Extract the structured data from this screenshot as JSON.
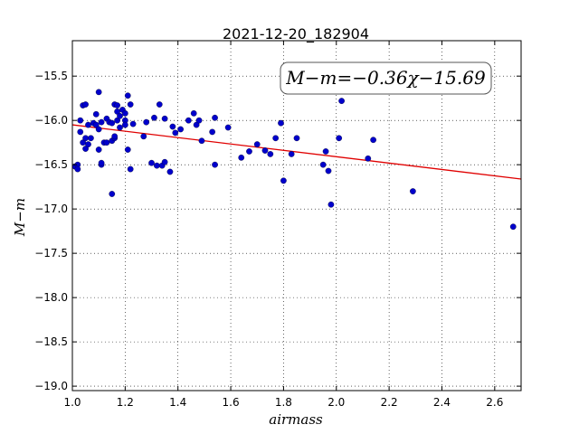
{
  "chart_data": {
    "type": "scatter",
    "title": "2021-12-20_182904",
    "xlabel": "airmass",
    "ylabel": "M−m",
    "xlim": [
      1.0,
      2.7
    ],
    "ylim": [
      -19.05,
      -15.1
    ],
    "invert_y": true,
    "grid": true,
    "grid_style": "dotted",
    "x_ticks": [
      1.0,
      1.2,
      1.4,
      1.6,
      1.8,
      2.0,
      2.2,
      2.4,
      2.6
    ],
    "x_tick_labels": [
      "1.0",
      "1.2",
      "1.4",
      "1.6",
      "1.8",
      "2.0",
      "2.2",
      "2.4",
      "2.6"
    ],
    "y_ticks": [
      -15.5,
      -16.0,
      -16.5,
      -17.0,
      -17.5,
      -18.0,
      -18.5,
      -19.0
    ],
    "y_tick_labels": [
      "−15.5",
      "−16.0",
      "−16.5",
      "−17.0",
      "−17.5",
      "−18.0",
      "−18.5",
      "−19.0"
    ],
    "annotation": "M−m=−0.36χ−15.69",
    "annotation_placement": "top-right",
    "fit_line": {
      "slope": -0.36,
      "intercept": -15.69,
      "x_range": [
        1.0,
        2.7
      ],
      "color": "#e00000"
    },
    "marker_color": "#0000cc",
    "points": [
      [
        1.01,
        -16.52
      ],
      [
        1.02,
        -16.5
      ],
      [
        1.02,
        -16.55
      ],
      [
        1.03,
        -16.13
      ],
      [
        1.03,
        -16.0
      ],
      [
        1.04,
        -15.83
      ],
      [
        1.04,
        -16.25
      ],
      [
        1.05,
        -16.2
      ],
      [
        1.05,
        -16.32
      ],
      [
        1.05,
        -15.82
      ],
      [
        1.06,
        -16.05
      ],
      [
        1.06,
        -16.27
      ],
      [
        1.07,
        -16.2
      ],
      [
        1.08,
        -16.03
      ],
      [
        1.09,
        -16.05
      ],
      [
        1.09,
        -15.93
      ],
      [
        1.1,
        -15.68
      ],
      [
        1.1,
        -16.1
      ],
      [
        1.1,
        -16.33
      ],
      [
        1.11,
        -16.5
      ],
      [
        1.11,
        -16.48
      ],
      [
        1.11,
        -16.02
      ],
      [
        1.12,
        -16.25
      ],
      [
        1.13,
        -15.98
      ],
      [
        1.13,
        -16.25
      ],
      [
        1.14,
        -16.02
      ],
      [
        1.15,
        -16.03
      ],
      [
        1.15,
        -16.23
      ],
      [
        1.15,
        -16.83
      ],
      [
        1.16,
        -16.2
      ],
      [
        1.16,
        -16.18
      ],
      [
        1.16,
        -15.82
      ],
      [
        1.17,
        -15.83
      ],
      [
        1.17,
        -16.0
      ],
      [
        1.17,
        -15.9
      ],
      [
        1.18,
        -15.95
      ],
      [
        1.18,
        -16.08
      ],
      [
        1.19,
        -15.88
      ],
      [
        1.2,
        -16.0
      ],
      [
        1.2,
        -15.92
      ],
      [
        1.2,
        -16.05
      ],
      [
        1.21,
        -15.72
      ],
      [
        1.21,
        -16.33
      ],
      [
        1.22,
        -16.55
      ],
      [
        1.22,
        -15.82
      ],
      [
        1.23,
        -16.04
      ],
      [
        1.27,
        -16.18
      ],
      [
        1.28,
        -16.02
      ],
      [
        1.3,
        -16.48
      ],
      [
        1.31,
        -15.97
      ],
      [
        1.32,
        -16.51
      ],
      [
        1.33,
        -15.82
      ],
      [
        1.34,
        -16.51
      ],
      [
        1.35,
        -16.47
      ],
      [
        1.35,
        -15.98
      ],
      [
        1.37,
        -16.58
      ],
      [
        1.38,
        -16.07
      ],
      [
        1.39,
        -16.14
      ],
      [
        1.41,
        -16.1
      ],
      [
        1.44,
        -16.0
      ],
      [
        1.46,
        -15.92
      ],
      [
        1.47,
        -16.05
      ],
      [
        1.48,
        -16.0
      ],
      [
        1.49,
        -16.23
      ],
      [
        1.53,
        -16.13
      ],
      [
        1.54,
        -16.5
      ],
      [
        1.54,
        -15.97
      ],
      [
        1.59,
        -16.08
      ],
      [
        1.64,
        -16.42
      ],
      [
        1.67,
        -16.35
      ],
      [
        1.7,
        -16.27
      ],
      [
        1.73,
        -16.34
      ],
      [
        1.75,
        -16.38
      ],
      [
        1.77,
        -16.2
      ],
      [
        1.79,
        -16.03
      ],
      [
        1.8,
        -16.68
      ],
      [
        1.83,
        -16.38
      ],
      [
        1.85,
        -16.2
      ],
      [
        1.95,
        -16.5
      ],
      [
        1.96,
        -16.35
      ],
      [
        1.97,
        -16.57
      ],
      [
        1.98,
        -16.95
      ],
      [
        2.01,
        -16.2
      ],
      [
        2.02,
        -15.78
      ],
      [
        2.12,
        -16.43
      ],
      [
        2.14,
        -16.22
      ],
      [
        2.29,
        -16.8
      ],
      [
        2.67,
        -17.2
      ]
    ]
  }
}
